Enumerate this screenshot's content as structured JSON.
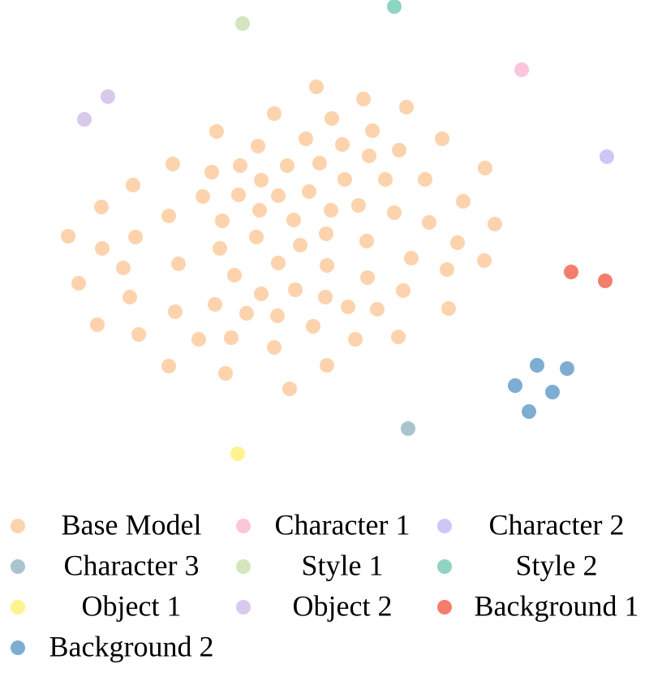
{
  "chart_data": {
    "type": "scatter",
    "xlim": [
      0,
      816
    ],
    "ylim": [
      600,
      0
    ],
    "legend": "bottom",
    "legend_columns": 3,
    "series": [
      {
        "name": "Base Model",
        "color": "#fdd3ad",
        "x": [
          390,
          448,
          501,
          338,
          409,
          267,
          459,
          377,
          545,
          318,
          422,
          492,
          455,
          213,
          296,
          354,
          394,
          261,
          598,
          164,
          322,
          425,
          475,
          524,
          250,
          294,
          343,
          381,
          571,
          125,
          442,
          320,
          408,
          486,
          208,
          274,
          362,
          529,
          610,
          84,
          167,
          316,
          402,
          452,
          126,
          271,
          370,
          564,
          507,
          597,
          220,
          152,
          343,
          403,
          551,
          289,
          453,
          97,
          160,
          322,
          364,
          401,
          497,
          265,
          216,
          304,
          342,
          429,
          465,
          553,
          120,
          386,
          171,
          245,
          285,
          438,
          491,
          338,
          208,
          278,
          403,
          357
        ],
        "values": [
          107,
          122,
          132,
          140,
          146,
          162,
          161,
          171,
          171,
          180,
          178,
          185,
          192,
          202,
          204,
          204,
          201,
          212,
          207,
          228,
          222,
          221,
          221,
          221,
          242,
          240,
          241,
          236,
          248,
          255,
          253,
          259,
          259,
          262,
          266,
          272,
          271,
          274,
          276,
          291,
          292,
          292,
          288,
          297,
          306,
          306,
          302,
          299,
          318,
          321,
          325,
          330,
          324,
          327,
          332,
          339,
          342,
          349,
          366,
          362,
          357,
          366,
          358,
          375,
          384,
          386,
          389,
          378,
          381,
          380,
          400,
          402,
          412,
          418,
          416,
          418,
          415,
          428,
          451,
          460,
          450,
          479
        ]
      },
      {
        "name": "Character 1",
        "color": "#fbc5dc",
        "x": [
          643
        ],
        "values": [
          86
        ]
      },
      {
        "name": "Character 2",
        "color": "#cdc6f8",
        "x": [
          748
        ],
        "values": [
          193
        ]
      },
      {
        "name": "Character 3",
        "color": "#a9c4cc",
        "x": [
          503
        ],
        "values": [
          528
        ]
      },
      {
        "name": "Style 1",
        "color": "#d4e5bf",
        "x": [
          299
        ],
        "values": [
          29
        ]
      },
      {
        "name": "Style 2",
        "color": "#8ed4c3",
        "x": [
          486
        ],
        "values": [
          8
        ]
      },
      {
        "name": "Object 1",
        "color": "#fdf38f",
        "x": [
          293
        ],
        "values": [
          559
        ]
      },
      {
        "name": "Object 2",
        "color": "#d9c9ec",
        "x": [
          104,
          133
        ],
        "values": [
          147,
          119
        ]
      },
      {
        "name": "Background 1",
        "color": "#f47e6c",
        "x": [
          704,
          746
        ],
        "values": [
          335,
          346
        ]
      },
      {
        "name": "Background 2",
        "color": "#7eadd3",
        "x": [
          662,
          699,
          635,
          681,
          652
        ],
        "values": [
          450,
          454,
          475,
          483,
          507
        ]
      }
    ]
  }
}
